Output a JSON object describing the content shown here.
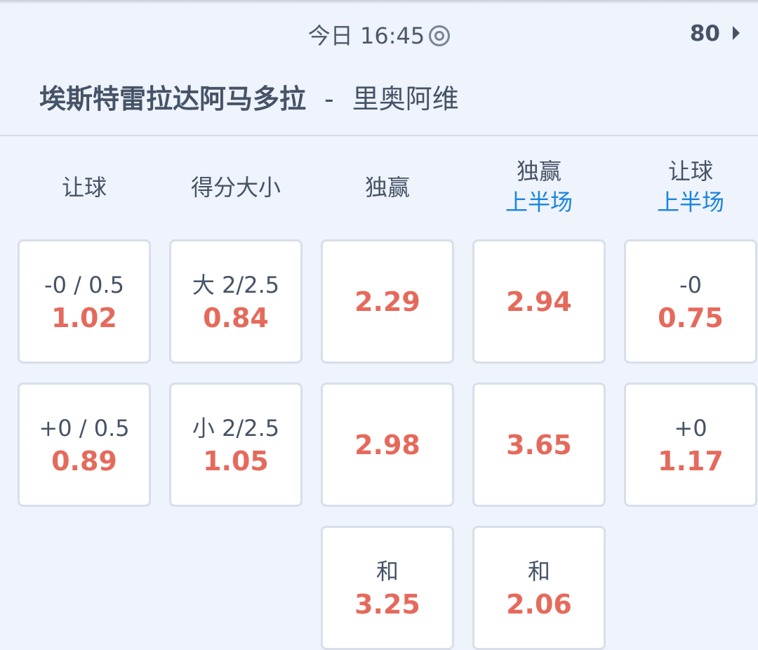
{
  "header": {
    "time": "今日 16:45",
    "live_icon": "target-icon",
    "minute": "80",
    "home_team": "埃斯特雷拉达阿马多拉",
    "separator": "-",
    "away_team": "里奥阿维"
  },
  "columns": [
    {
      "title": "让球",
      "sub": ""
    },
    {
      "title": "得分大小",
      "sub": ""
    },
    {
      "title": "独赢",
      "sub": ""
    },
    {
      "title": "独赢",
      "sub": "上半场"
    },
    {
      "title": "让球",
      "sub": "上半场"
    }
  ],
  "cells": [
    {
      "col": 0,
      "row": 0,
      "line": "-0 / 0.5",
      "odds": "1.02"
    },
    {
      "col": 1,
      "row": 0,
      "line": "大 2/2.5",
      "odds": "0.84"
    },
    {
      "col": 2,
      "row": 0,
      "line": "",
      "odds": "2.29"
    },
    {
      "col": 3,
      "row": 0,
      "line": "",
      "odds": "2.94"
    },
    {
      "col": 4,
      "row": 0,
      "line": "-0",
      "odds": "0.75"
    },
    {
      "col": 0,
      "row": 1,
      "line": "+0 / 0.5",
      "odds": "0.89"
    },
    {
      "col": 1,
      "row": 1,
      "line": "小 2/2.5",
      "odds": "1.05"
    },
    {
      "col": 2,
      "row": 1,
      "line": "",
      "odds": "2.98"
    },
    {
      "col": 3,
      "row": 1,
      "line": "",
      "odds": "3.65"
    },
    {
      "col": 4,
      "row": 1,
      "line": "+0",
      "odds": "1.17"
    },
    {
      "col": 2,
      "row": 2,
      "line": "和",
      "odds": "3.25"
    },
    {
      "col": 3,
      "row": 2,
      "line": "和",
      "odds": "2.06"
    }
  ],
  "colors": {
    "odds": "#e56a5c",
    "sub_label": "#1a85dc",
    "text": "#465367",
    "background": "#eef3fc"
  }
}
